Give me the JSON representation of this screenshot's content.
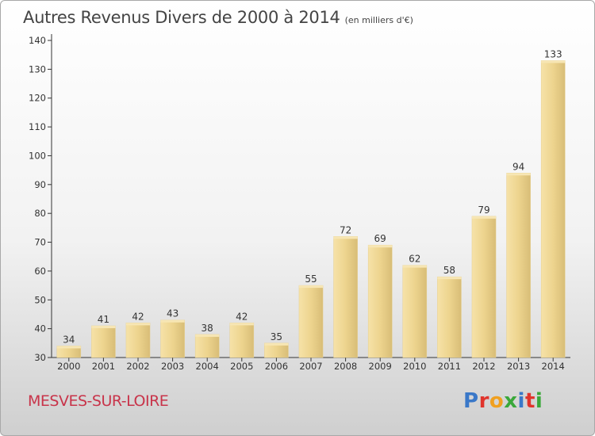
{
  "chart_data": {
    "type": "bar",
    "title": "Autres Revenus Divers de 2000 à 2014",
    "subtitle": "(en milliers d'€)",
    "categories": [
      "2000",
      "2001",
      "2002",
      "2003",
      "2004",
      "2005",
      "2006",
      "2007",
      "2008",
      "2009",
      "2010",
      "2011",
      "2012",
      "2013",
      "2014"
    ],
    "values": [
      34,
      41,
      42,
      43,
      38,
      42,
      35,
      55,
      72,
      69,
      62,
      58,
      79,
      94,
      133
    ],
    "ylim": [
      30,
      140
    ],
    "yticks": [
      30,
      40,
      50,
      60,
      70,
      80,
      90,
      100,
      110,
      120,
      130,
      140
    ],
    "grid": false,
    "bar_color": "#e9cf88"
  },
  "footer": {
    "commune": "MESVES-SUR-LOIRE",
    "brand": "Proxiti",
    "brand_colors": [
      "#3a78c8",
      "#e0342c",
      "#f0a020",
      "#3aa83a",
      "#3a78c8",
      "#e0342c",
      "#3aa83a"
    ]
  }
}
